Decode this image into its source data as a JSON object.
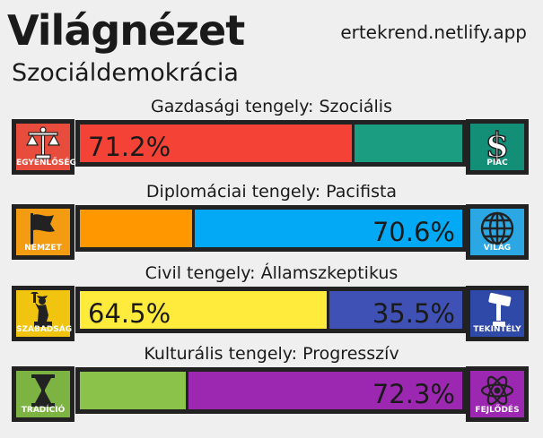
{
  "title": "Világnézet",
  "subtitle": "Szociáldemokrácia",
  "site": "ertekrend.netlify.app",
  "axes": [
    {
      "label": "Gazdasági tengely: Szociális",
      "left_icon": {
        "name": "scales-icon",
        "caption": "EGYENLŐSÉG",
        "color": "#e74c3c"
      },
      "right_icon": {
        "name": "dollar-icon",
        "caption": "PIAC",
        "color": "#138f77"
      },
      "left_value": 71.2,
      "right_value": 28.8,
      "left_color": "#f44336",
      "right_color": "#1a9d80",
      "left_text": "71.2%",
      "right_text": ""
    },
    {
      "label": "Diplomáciai tengely: Pacifista",
      "left_icon": {
        "name": "flag-icon",
        "caption": "NEMZET",
        "color": "#f39c12"
      },
      "right_icon": {
        "name": "globe-icon",
        "caption": "VILÁG",
        "color": "#2ba7e4"
      },
      "left_value": 29.4,
      "right_value": 70.6,
      "left_color": "#ff9800",
      "right_color": "#03a9f4",
      "left_text": "",
      "right_text": "70.6%"
    },
    {
      "label": "Civil tengely: Államszkeptikus",
      "left_icon": {
        "name": "liberty-statue-icon",
        "caption": "SZABADSÁG",
        "color": "#f1c40f"
      },
      "right_icon": {
        "name": "gavel-icon",
        "caption": "TEKINTÉLY",
        "color": "#2f49a8"
      },
      "left_value": 64.5,
      "right_value": 35.5,
      "left_color": "#ffeb3b",
      "right_color": "#3f51b5",
      "left_text": "64.5%",
      "right_text": "35.5%"
    },
    {
      "label": "Kulturális tengely: Progresszív",
      "left_icon": {
        "name": "hourglass-icon",
        "caption": "TRADÍCIÓ",
        "color": "#7cb342"
      },
      "right_icon": {
        "name": "atom-icon",
        "caption": "FEJLŐDÉS",
        "color": "#9c27b0"
      },
      "left_value": 27.7,
      "right_value": 72.3,
      "left_color": "#8bc34a",
      "right_color": "#9c27b0",
      "left_text": "",
      "right_text": "72.3%"
    }
  ]
}
